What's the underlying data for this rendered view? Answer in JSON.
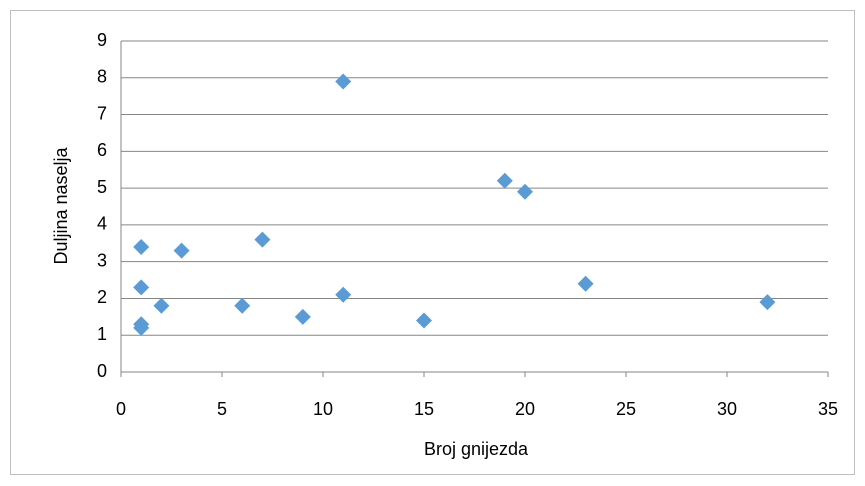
{
  "chart_data": {
    "type": "scatter",
    "x_label": "Broj gnijezda",
    "y_label": "Duljina naselja",
    "series": [
      {
        "color": "#5b9bd5",
        "x": [
          1,
          1,
          1,
          1,
          2,
          3,
          6,
          7,
          9,
          11,
          11,
          15,
          19,
          20,
          23,
          32
        ],
        "values": [
          3.4,
          2.3,
          1.3,
          1.2,
          1.8,
          3.3,
          1.8,
          3.6,
          1.5,
          7.9,
          2.1,
          1.4,
          5.2,
          4.9,
          2.4,
          1.9
        ]
      }
    ],
    "xlim": [
      0,
      35
    ],
    "xticks": [
      0,
      5,
      10,
      15,
      20,
      25,
      30,
      35
    ],
    "ylim": [
      0,
      9
    ],
    "yticks": [
      0,
      1,
      2,
      3,
      4,
      5,
      6,
      7,
      8,
      9
    ],
    "grid": true
  }
}
